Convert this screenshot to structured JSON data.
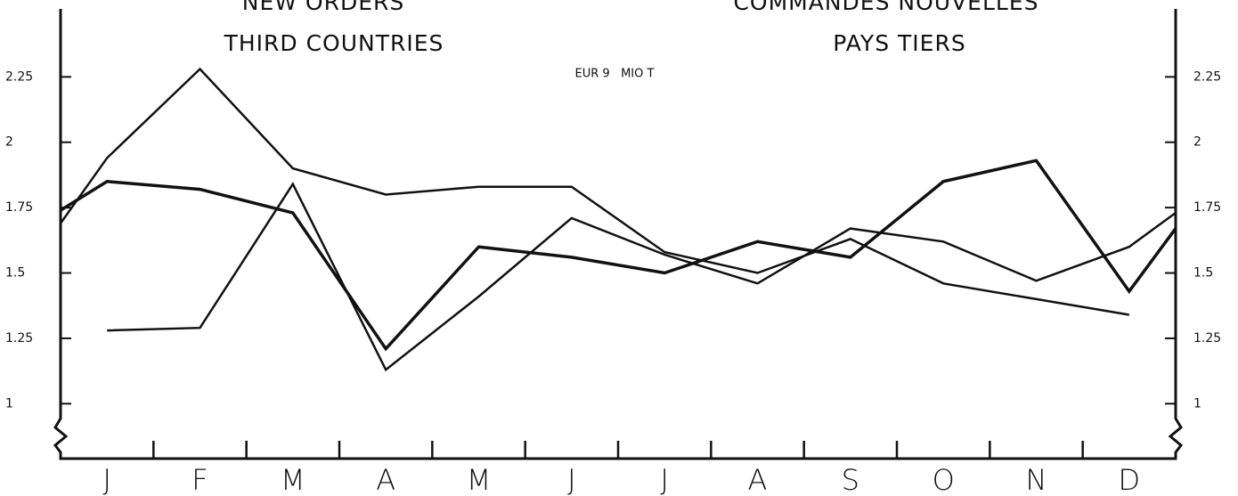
{
  "chart_data": {
    "type": "line",
    "title": "NEW ORDERS",
    "subtitle": "THIRD COUNTRIES",
    "title_fr": "COMMANDES NOUVELLES",
    "subtitle_fr": "PAYS TIERS",
    "unit": "EUR 9   MIO T",
    "categories": [
      null,
      "J",
      "F",
      "M",
      "A",
      "M",
      "J",
      "J",
      "A",
      "S",
      "O",
      "N",
      "D",
      null
    ],
    "series": [
      {
        "color": "#111",
        "width": 2.5,
        "values": [
          1.69,
          1.94,
          2.28,
          1.9,
          1.8,
          1.83,
          1.83,
          1.58,
          1.5,
          1.63,
          1.46,
          1.4,
          1.34,
          null
        ]
      },
      {
        "color": "#111",
        "width": 3.5,
        "values": [
          1.74,
          1.85,
          1.82,
          1.73,
          1.21,
          1.6,
          1.56,
          1.5,
          1.62,
          1.56,
          1.85,
          1.93,
          1.43,
          1.67
        ]
      },
      {
        "color": "#111",
        "width": 2.5,
        "values": [
          null,
          1.28,
          1.29,
          1.84,
          1.13,
          1.41,
          1.71,
          1.57,
          1.46,
          1.67,
          1.62,
          1.47,
          1.6,
          1.73
        ]
      }
    ],
    "ylim": [
      0.79,
      2.51
    ],
    "yticks": [
      1,
      1.25,
      1.5,
      1.75,
      2,
      2.25
    ]
  }
}
